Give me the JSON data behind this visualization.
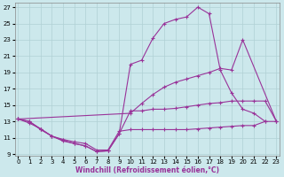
{
  "xlabel": "Windchill (Refroidissement éolien,°C)",
  "xlim": [
    -0.3,
    23.3
  ],
  "ylim": [
    8.8,
    27.5
  ],
  "yticks": [
    9,
    11,
    13,
    15,
    17,
    19,
    21,
    23,
    25,
    27
  ],
  "xticks": [
    0,
    1,
    2,
    3,
    4,
    5,
    6,
    7,
    8,
    9,
    10,
    11,
    12,
    13,
    14,
    15,
    16,
    17,
    18,
    19,
    20,
    21,
    22,
    23
  ],
  "bg_color": "#cce8ec",
  "grid_color": "#b0d0d4",
  "line_color": "#993399",
  "line1_x": [
    0,
    1,
    2,
    3,
    4,
    5,
    6,
    7,
    8,
    9,
    10,
    11,
    12,
    13,
    14,
    15,
    16,
    17,
    18,
    19,
    20,
    21,
    22,
    23
  ],
  "line1_y": [
    13.3,
    13.0,
    12.0,
    11.2,
    10.6,
    10.3,
    10.0,
    9.3,
    9.4,
    11.5,
    14.3,
    14.3,
    14.5,
    14.5,
    14.6,
    14.8,
    15.0,
    15.2,
    15.3,
    15.5,
    15.5,
    15.5,
    15.5,
    13.0
  ],
  "line2_x": [
    0,
    1,
    2,
    3,
    4,
    5,
    6,
    7,
    8,
    9,
    10,
    11,
    12,
    13,
    14,
    15,
    16,
    17,
    18,
    19,
    20,
    21,
    22
  ],
  "line2_y": [
    13.3,
    13.0,
    12.1,
    11.2,
    10.7,
    10.3,
    10.0,
    9.3,
    9.4,
    11.5,
    20.0,
    20.5,
    23.2,
    25.0,
    25.5,
    25.8,
    27.0,
    26.2,
    19.3,
    16.5,
    14.5,
    14.0,
    13.0
  ],
  "line3_x": [
    0,
    10,
    11,
    12,
    13,
    14,
    15,
    16,
    17,
    18,
    19,
    20,
    23
  ],
  "line3_y": [
    13.3,
    14.0,
    15.2,
    16.3,
    17.2,
    17.8,
    18.2,
    18.6,
    19.0,
    19.5,
    19.3,
    23.0,
    13.0
  ],
  "line4_x": [
    0,
    1,
    2,
    3,
    4,
    5,
    6,
    7,
    8,
    9,
    10,
    11,
    12,
    13,
    14,
    15,
    16,
    17,
    18,
    19,
    20,
    21,
    22,
    23
  ],
  "line4_y": [
    13.3,
    12.8,
    12.1,
    11.2,
    10.8,
    10.5,
    10.3,
    9.5,
    9.5,
    11.8,
    12.0,
    12.0,
    12.0,
    12.0,
    12.0,
    12.0,
    12.1,
    12.2,
    12.3,
    12.4,
    12.5,
    12.5,
    13.0,
    13.0
  ]
}
